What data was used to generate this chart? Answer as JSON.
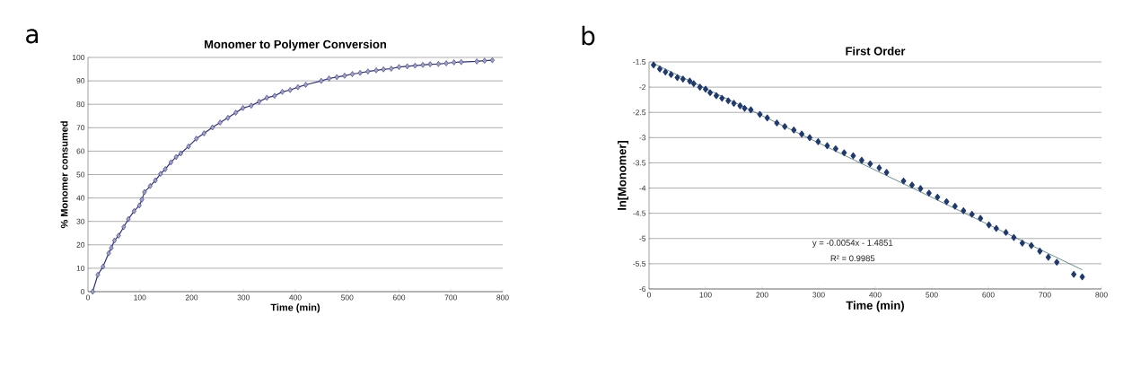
{
  "chart_data": [
    {
      "type": "line",
      "title": "Monomer to Polymer Conversion",
      "xlabel": "Time (min)",
      "ylabel": "% Monomer consumed",
      "annotations": [
        "a"
      ],
      "xlim": [
        0,
        800
      ],
      "xticks": [
        0,
        100,
        200,
        300,
        400,
        500,
        600,
        700,
        800
      ],
      "ylim": [
        0,
        100
      ],
      "yticks": [
        0,
        10,
        20,
        30,
        40,
        50,
        60,
        70,
        80,
        90,
        100
      ],
      "grid": "y",
      "marker": "diamond",
      "series": [
        {
          "color": "#2e3080",
          "x": [
            9,
            19,
            29,
            40,
            45,
            51,
            59,
            69,
            78,
            89,
            99,
            104,
            109,
            120,
            130,
            140,
            149,
            160,
            170,
            179,
            194,
            209,
            224,
            240,
            255,
            270,
            285,
            299,
            315,
            330,
            345,
            360,
            375,
            390,
            405,
            420,
            450,
            465,
            480,
            495,
            510,
            525,
            540,
            556,
            570,
            585,
            600,
            616,
            631,
            646,
            660,
            676,
            691,
            706,
            720,
            750,
            765,
            780
          ],
          "values": [
            0,
            7.2,
            10.7,
            16.4,
            18.7,
            21.8,
            23.9,
            27.6,
            31,
            34.4,
            36.8,
            39.3,
            42.5,
            45.1,
            47.5,
            50.3,
            52.3,
            55.2,
            57.5,
            59,
            62,
            65.3,
            67.6,
            70.1,
            72.2,
            74.2,
            76.4,
            78.4,
            79.4,
            81.1,
            82.8,
            83.6,
            85.3,
            86.1,
            87.3,
            88.3,
            90,
            91,
            91.6,
            92.2,
            92.9,
            93.4,
            94,
            94.5,
            94.9,
            95.2,
            95.9,
            96.2,
            96.5,
            96.8,
            97.1,
            97.2,
            97.5,
            97.9,
            98,
            98.3,
            98.6,
            98.8
          ]
        }
      ]
    },
    {
      "type": "scatter",
      "title": "First Order",
      "xlabel": "Time (min)",
      "ylabel": "ln[Monomer]",
      "annotations": [
        "b",
        "y = -0.0054x - 1.4851",
        "R² = 0.9985"
      ],
      "xlim": [
        0,
        800
      ],
      "xticks": [
        0,
        100,
        200,
        300,
        400,
        500,
        600,
        700,
        800
      ],
      "ylim": [
        -6,
        -1.5
      ],
      "yticks": [
        -6,
        -5.5,
        -5,
        -4.5,
        -4,
        -3.5,
        -3,
        -2.5,
        -2,
        -1.5
      ],
      "grid": "y",
      "marker": "diamond",
      "series": [
        {
          "color": "#1f3a6e",
          "x": [
            8,
            19,
            29,
            39,
            50,
            60,
            72,
            79,
            90,
            100,
            108,
            119,
            129,
            140,
            150,
            161,
            169,
            180,
            196,
            209,
            226,
            240,
            256,
            270,
            284,
            299,
            315,
            330,
            345,
            361,
            376,
            391,
            407,
            420,
            450,
            465,
            480,
            495,
            510,
            526,
            541,
            556,
            571,
            586,
            601,
            614,
            631,
            645,
            660,
            676,
            691,
            706,
            721,
            751,
            766
          ],
          "values": [
            -1.56,
            -1.64,
            -1.7,
            -1.75,
            -1.81,
            -1.84,
            -1.88,
            -1.93,
            -2,
            -2.04,
            -2.11,
            -2.17,
            -2.22,
            -2.27,
            -2.32,
            -2.37,
            -2.42,
            -2.45,
            -2.54,
            -2.61,
            -2.71,
            -2.78,
            -2.85,
            -2.93,
            -3,
            -3.08,
            -3.16,
            -3.22,
            -3.3,
            -3.36,
            -3.45,
            -3.52,
            -3.6,
            -3.69,
            -3.86,
            -3.94,
            -4.01,
            -4.1,
            -4.18,
            -4.27,
            -4.36,
            -4.45,
            -4.52,
            -4.6,
            -4.73,
            -4.8,
            -4.88,
            -4.98,
            -5.09,
            -5.14,
            -5.25,
            -5.37,
            -5.47,
            -5.71,
            -5.76
          ]
        },
        {
          "type": "line",
          "marker": "none",
          "color": "#2f6060",
          "x": [
            8,
            766
          ],
          "values": [
            -1.53,
            -5.62
          ]
        }
      ]
    }
  ]
}
